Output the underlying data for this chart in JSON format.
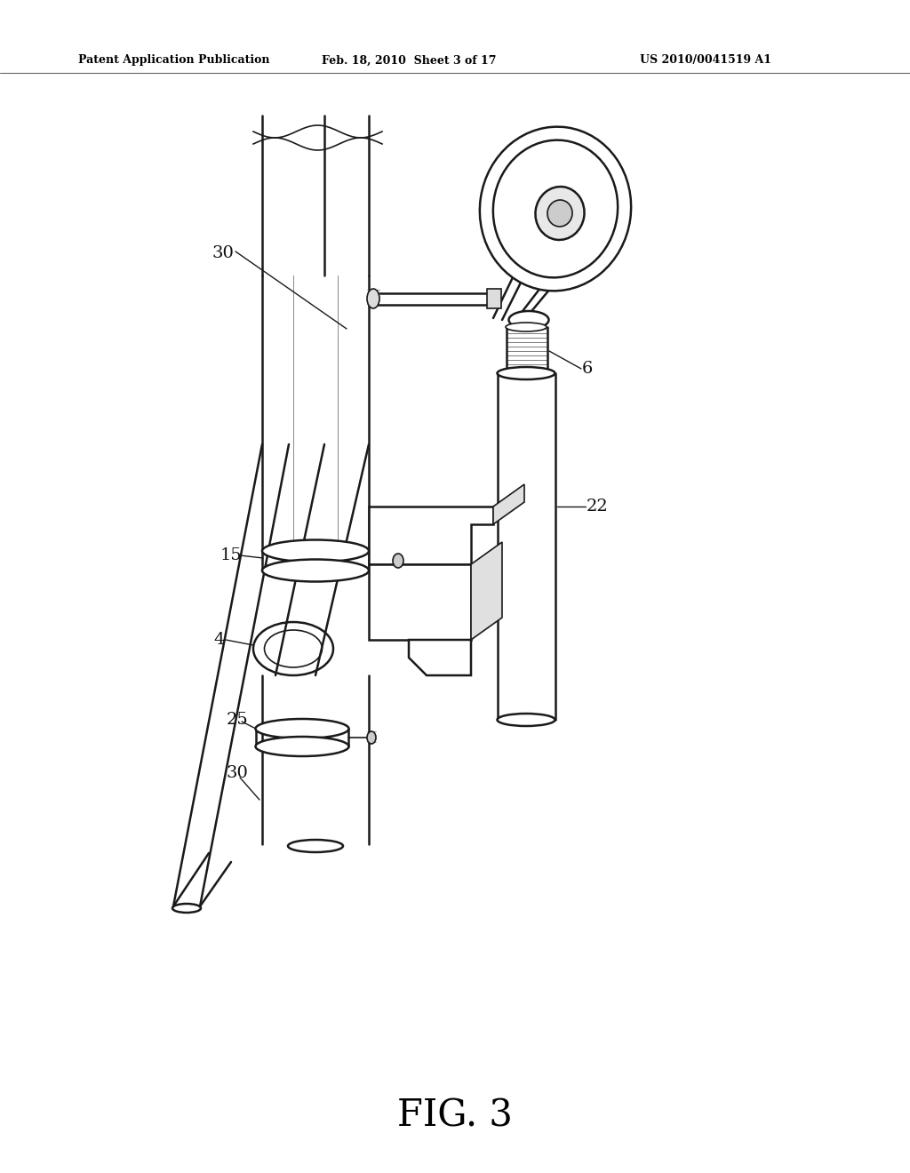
{
  "title": "FIG. 3",
  "header_left": "Patent Application Publication",
  "header_mid": "Feb. 18, 2010  Sheet 3 of 17",
  "header_right": "US 2010/0041519 A1",
  "background": "#ffffff",
  "fig_width": 10.24,
  "fig_height": 13.2,
  "dpi": 100
}
